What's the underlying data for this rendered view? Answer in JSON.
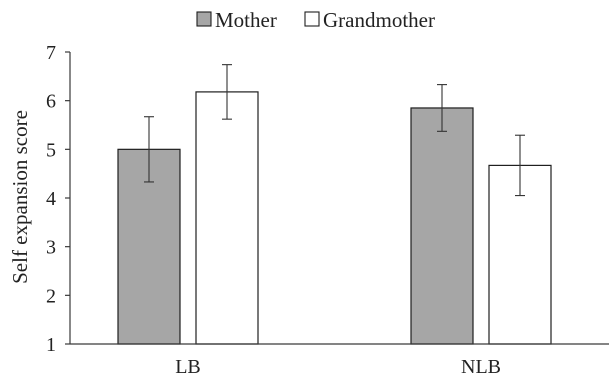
{
  "chart_data": {
    "type": "bar",
    "title": "",
    "xlabel": "",
    "ylabel": "Self expansion score",
    "categories": [
      "LB",
      "NLB"
    ],
    "series": [
      {
        "name": "Mother",
        "color": "#a6a6a6",
        "values": [
          5.0,
          5.85
        ],
        "error": [
          0.67,
          0.48
        ]
      },
      {
        "name": "Grandmother",
        "color": "#ffffff",
        "values": [
          6.18,
          4.67
        ],
        "error": [
          0.56,
          0.62
        ]
      }
    ],
    "ylim": [
      1,
      7
    ],
    "yticks": [
      "1",
      "2",
      "3",
      "4",
      "5",
      "6",
      "7"
    ],
    "grid": false,
    "legend_position": "top-center",
    "error_bars": true
  }
}
